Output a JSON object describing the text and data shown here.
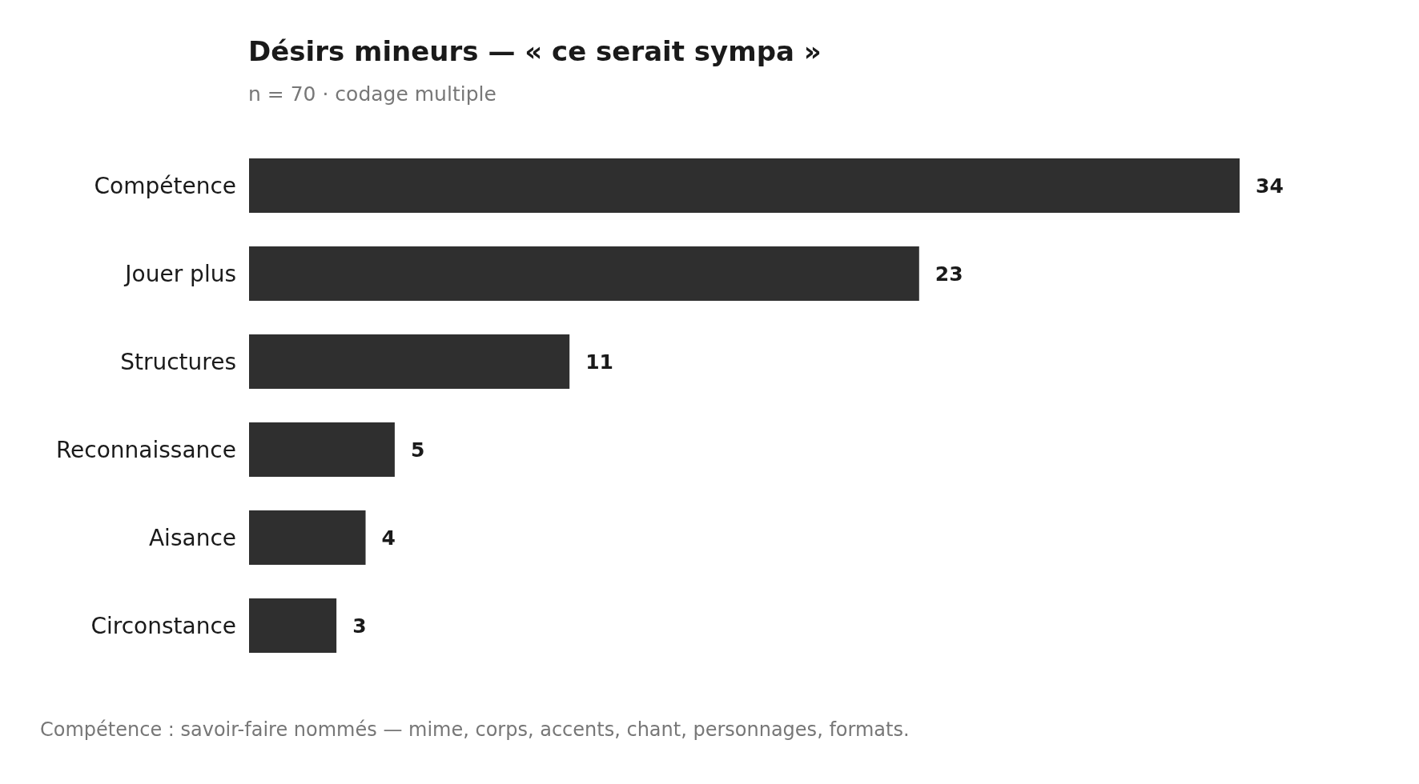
{
  "chart_data": {
    "type": "bar",
    "orientation": "horizontal",
    "title": "Désirs mineurs — « ce serait sympa »",
    "subtitle": "n = 70 · codage multiple",
    "categories": [
      "Compétence",
      "Jouer plus",
      "Structures",
      "Reconnaissance",
      "Aisance",
      "Circonstance"
    ],
    "values": [
      34,
      23,
      11,
      5,
      4,
      3
    ],
    "color": "#2f2f2f",
    "data_labels": true,
    "annotations": [
      "Compétence : savoir-faire nommés — mime, corps, accents, chant, personnages, formats."
    ]
  }
}
